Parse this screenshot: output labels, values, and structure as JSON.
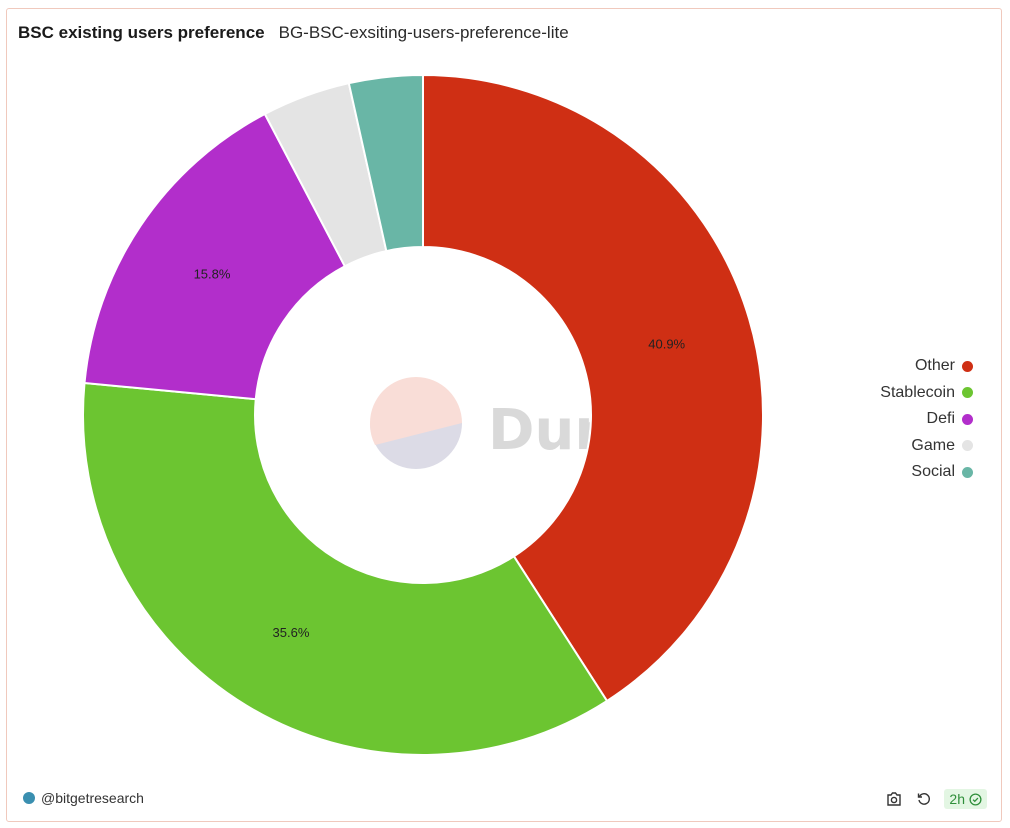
{
  "header": {
    "title": "BSC existing users preference",
    "subtitle": "BG-BSC-exsiting-users-preference-lite"
  },
  "chart_data": {
    "type": "pie",
    "donut": true,
    "categories": [
      "Other",
      "Stablecoin",
      "Defi",
      "Game",
      "Social"
    ],
    "values": [
      40.9,
      35.6,
      15.8,
      4.2,
      3.5
    ],
    "labels": [
      "40.9%",
      "35.6%",
      "15.8%",
      "",
      ""
    ],
    "colors": [
      "#cf2f14",
      "#6cc531",
      "#b22ecb",
      "#e4e4e4",
      "#69b6a6"
    ],
    "legend_position": "right"
  },
  "watermark": {
    "text": "Dune"
  },
  "footer": {
    "author": "@bitgetresearch",
    "age": "2h"
  },
  "icons": {
    "camera": "camera-icon",
    "refresh": "refresh-icon",
    "check": "check-circle-icon"
  }
}
